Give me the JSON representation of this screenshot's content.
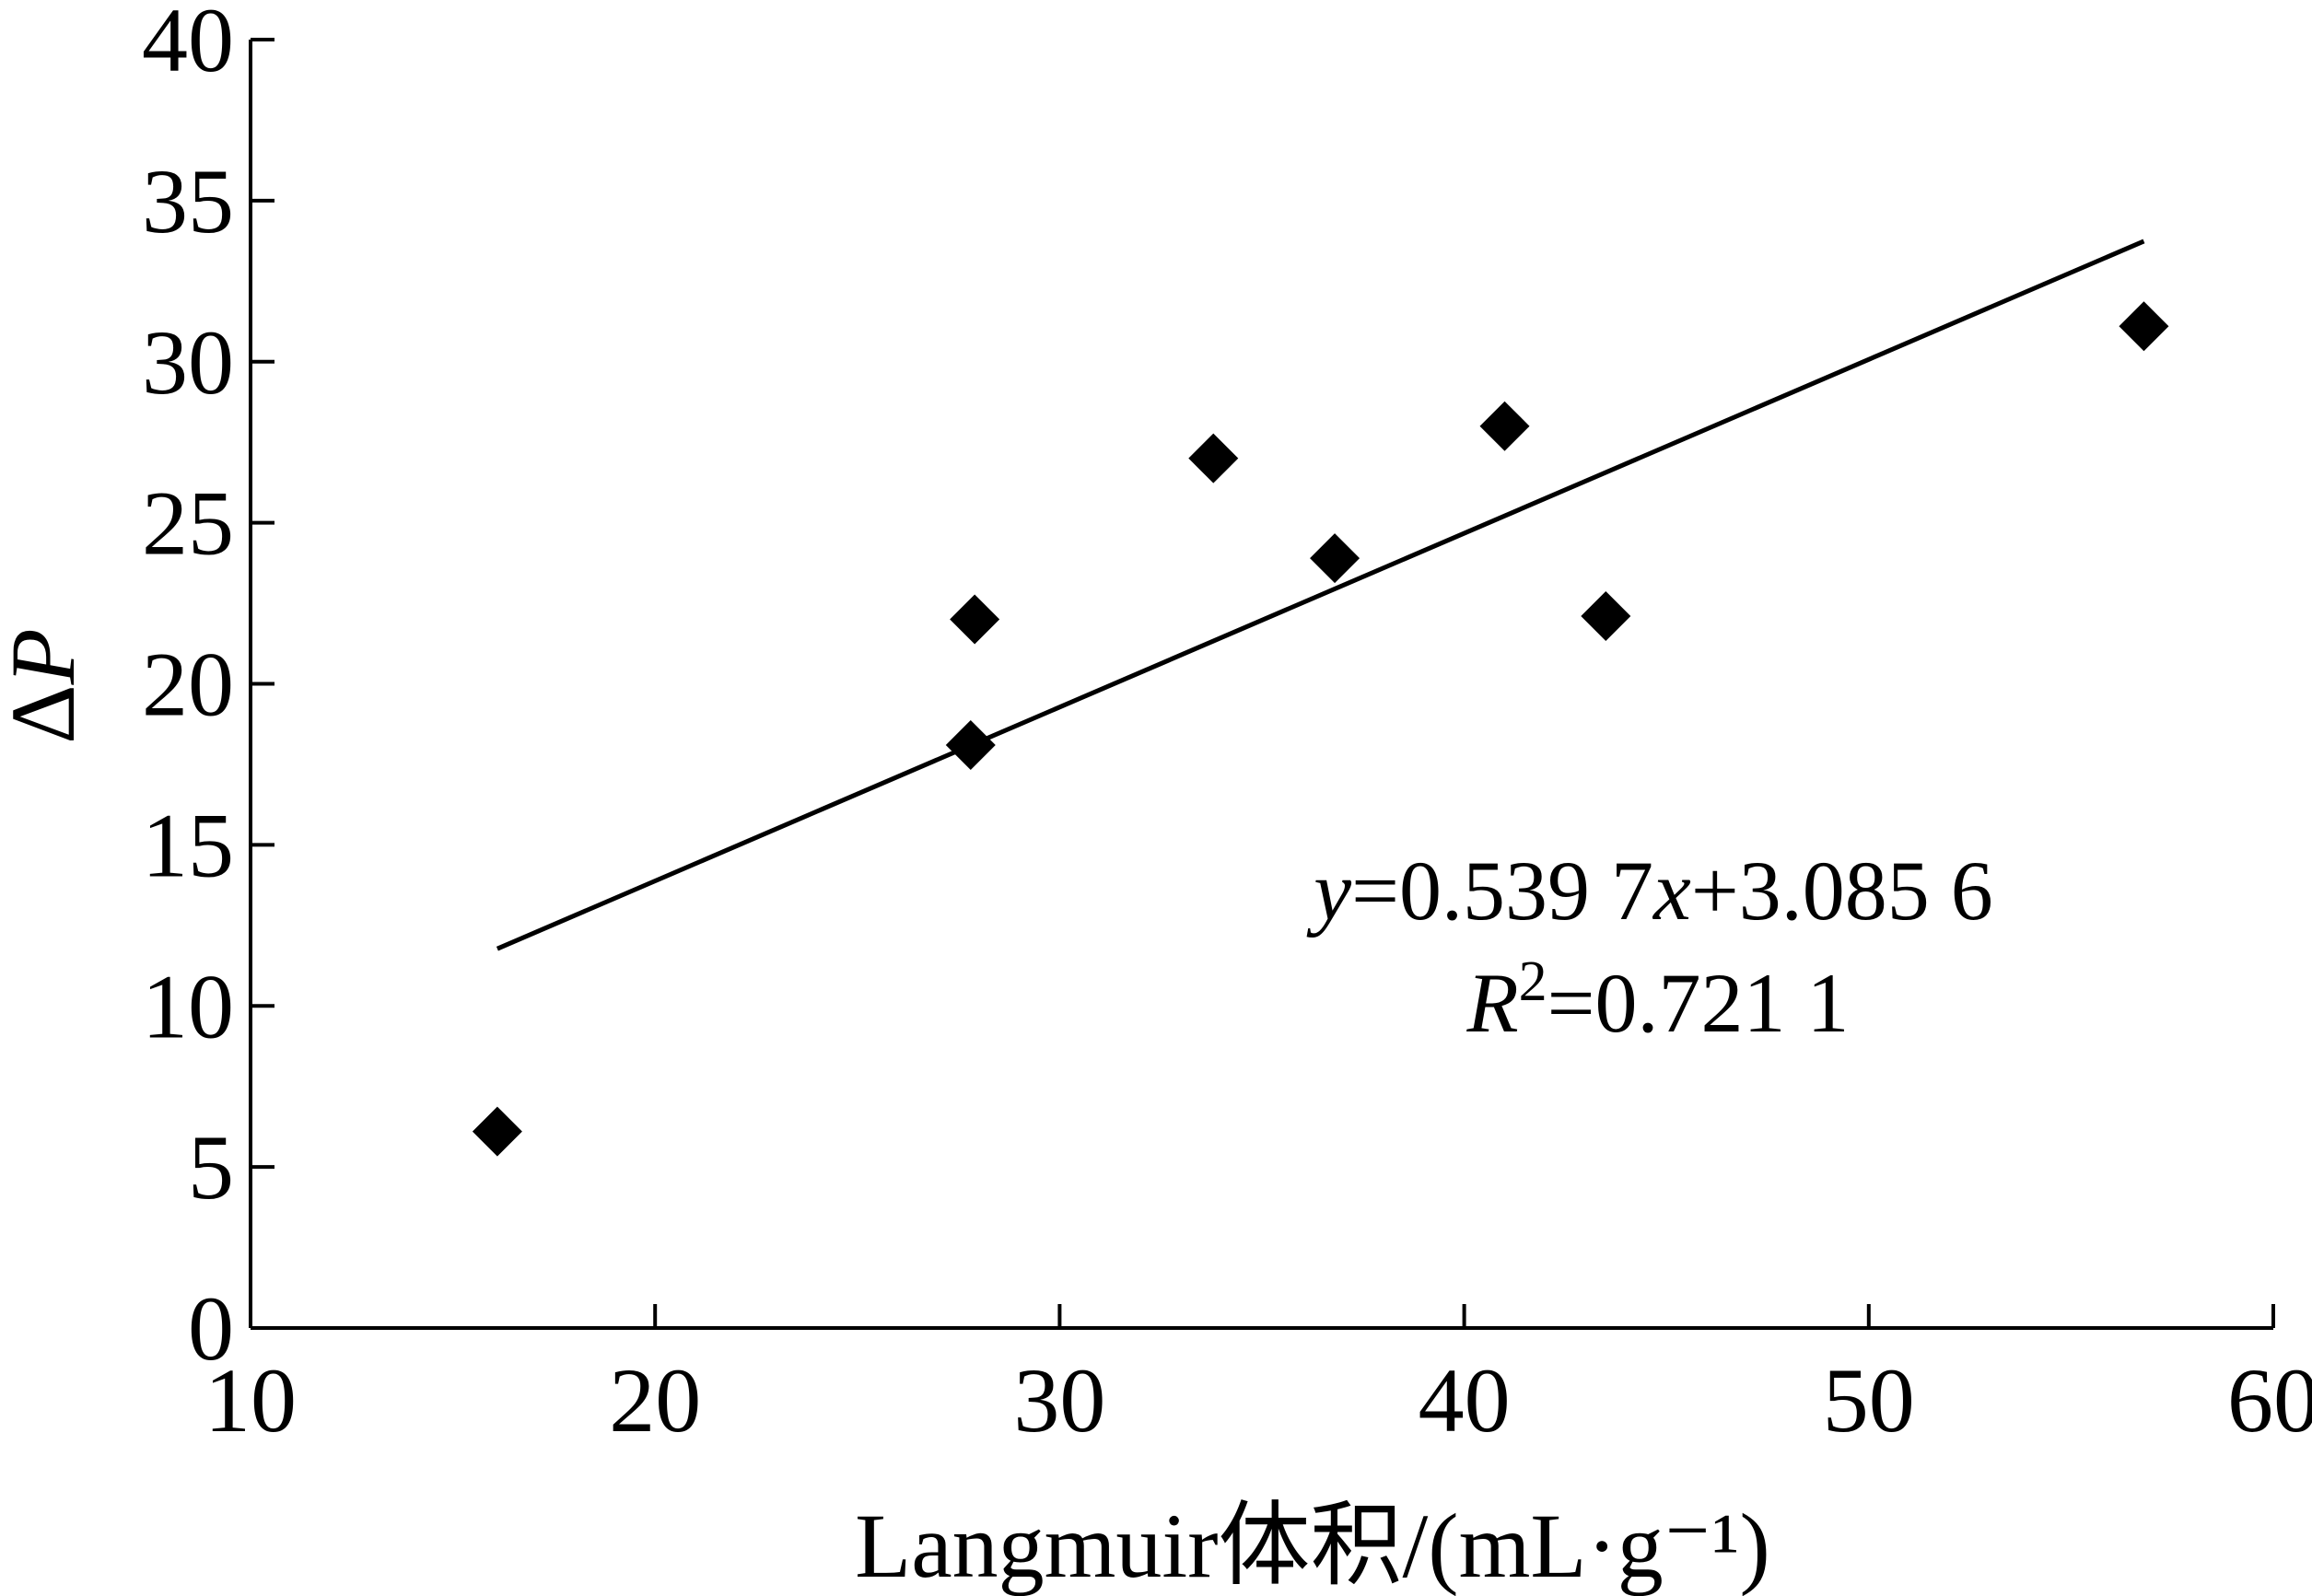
{
  "chart_data": {
    "type": "scatter",
    "title": "",
    "xlabel": "Langmuir体积/(mL·g⁻¹)",
    "ylabel": "ΔP",
    "xlim": [
      10,
      60
    ],
    "ylim": [
      0,
      40
    ],
    "xticks": [
      10,
      20,
      30,
      40,
      50,
      60
    ],
    "yticks": [
      0,
      5,
      10,
      15,
      20,
      25,
      30,
      35,
      40
    ],
    "grid": false,
    "legend": "none",
    "marker": "diamond",
    "marker_color": "#000000",
    "points": [
      {
        "x": 16.1,
        "y": 6.1
      },
      {
        "x": 27.8,
        "y": 18.1
      },
      {
        "x": 27.9,
        "y": 22.0
      },
      {
        "x": 33.8,
        "y": 27.0
      },
      {
        "x": 36.8,
        "y": 23.9
      },
      {
        "x": 41.0,
        "y": 28.0
      },
      {
        "x": 43.5,
        "y": 22.1
      },
      {
        "x": 56.8,
        "y": 31.1
      }
    ],
    "trendline": {
      "slope": 0.5397,
      "intercept": 3.0856,
      "x_range": [
        16.1,
        56.8
      ],
      "equation_text": "y=0.539 7x+3.085 6",
      "r2_text": "R²=0.721 1"
    }
  }
}
